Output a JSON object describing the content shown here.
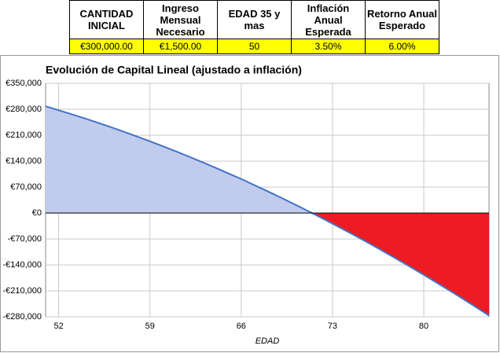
{
  "table": {
    "headers": [
      "CANTIDAD INICIAL",
      "Ingreso Mensual Necesario",
      "EDAD 35 y mas",
      "Inflación Anual Esperada",
      "Retorno Anual Esperado"
    ],
    "rows": [
      [
        "€300,000.00",
        "€1,500.00",
        "50",
        "3.50%",
        "6.00%"
      ]
    ]
  },
  "chart_data": {
    "type": "area",
    "title": "Evolución de Capital Lineal (ajustado a inflación)",
    "x_label": "EDAD",
    "x": [
      51,
      52,
      53,
      54,
      55,
      56,
      57,
      58,
      59,
      60,
      61,
      62,
      63,
      64,
      65,
      66,
      67,
      68,
      69,
      70,
      71,
      72,
      73,
      74,
      75,
      76,
      77,
      78,
      79,
      80,
      81,
      82,
      83,
      84,
      85
    ],
    "series": [
      {
        "color": "#4472c4",
        "fill_positive": "#c0cbed",
        "fill_negative": "#ed1c24",
        "values": [
          288000,
          277500,
          266600,
          255400,
          243800,
          231800,
          219500,
          206700,
          193600,
          180200,
          166400,
          152200,
          137600,
          122600,
          107300,
          92000,
          75600,
          59200,
          42400,
          25200,
          7700,
          -10200,
          -28500,
          -47100,
          -66100,
          -85500,
          -105300,
          -125400,
          -145900,
          -166700,
          -188000,
          -209600,
          -231500,
          -253900,
          -276600
        ]
      }
    ],
    "xlim": [
      51,
      85
    ],
    "xticks": [
      52,
      59,
      66,
      73,
      80
    ],
    "ylim": [
      -280000,
      350000
    ],
    "yticks": [
      {
        "value": -280000,
        "label": "-€280,000"
      },
      {
        "value": -210000,
        "label": "-€210,000"
      },
      {
        "value": -140000,
        "label": "-€140,000"
      },
      {
        "value": -70000,
        "label": "-€70,000"
      },
      {
        "value": 0,
        "label": "€0"
      },
      {
        "value": 70000,
        "label": "€70,000"
      },
      {
        "value": 140000,
        "label": "€140,000"
      },
      {
        "value": 210000,
        "label": "€210,000"
      },
      {
        "value": 280000,
        "label": "€280,000"
      },
      {
        "value": 350000,
        "label": "€350,000"
      }
    ],
    "grid": true
  }
}
